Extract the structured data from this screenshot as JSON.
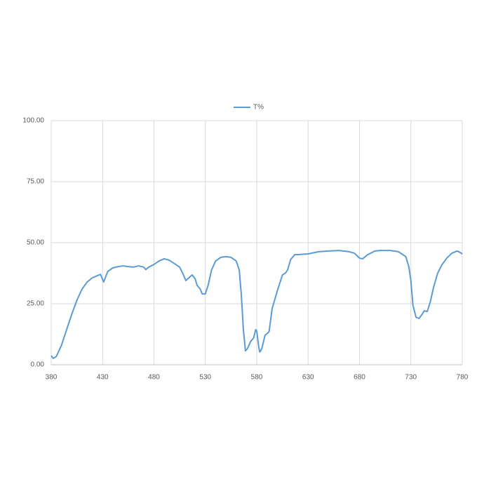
{
  "chart_data": {
    "type": "line",
    "x": [
      380,
      382,
      385,
      390,
      395,
      400,
      405,
      410,
      415,
      420,
      425,
      428,
      431,
      435,
      440,
      445,
      450,
      455,
      460,
      465,
      470,
      472,
      475,
      480,
      485,
      490,
      495,
      500,
      505,
      508,
      511,
      514,
      517,
      520,
      522,
      525,
      527,
      530,
      533,
      536,
      540,
      545,
      550,
      555,
      560,
      563,
      565,
      567,
      569,
      571,
      574,
      577,
      579,
      580,
      582,
      583,
      585,
      588,
      592,
      595,
      600,
      605,
      608,
      610,
      613,
      617,
      620,
      630,
      640,
      650,
      660,
      670,
      675,
      680,
      683,
      688,
      695,
      700,
      710,
      718,
      725,
      728,
      730,
      732,
      735,
      738,
      741,
      743,
      746,
      749,
      752,
      756,
      760,
      765,
      770,
      775,
      778,
      780
    ],
    "series": [
      {
        "name": "T%",
        "color": "#5b9bd5",
        "values": [
          3.7,
          2.6,
          3.4,
          8,
          14.4,
          20.7,
          26.4,
          31,
          33.9,
          35.6,
          36.5,
          37,
          33.9,
          38.2,
          39.7,
          40.2,
          40.5,
          40.2,
          40,
          40.5,
          40,
          39,
          40,
          41.1,
          42.5,
          43.4,
          42.8,
          41.4,
          40,
          37.4,
          34.5,
          35.6,
          36.8,
          35.3,
          32.5,
          31,
          29,
          29,
          33,
          38.8,
          42.5,
          44,
          44.3,
          44,
          42.5,
          38.8,
          28.7,
          14.4,
          5.7,
          6.6,
          9.5,
          11,
          14.4,
          13.8,
          7.2,
          5.2,
          6.6,
          12,
          13.5,
          23,
          30.2,
          36.8,
          37.6,
          38.8,
          43.1,
          45.1,
          45.1,
          45.4,
          46.3,
          46.6,
          46.8,
          46.3,
          45.7,
          43.7,
          43.4,
          45.1,
          46.6,
          46.8,
          46.8,
          46.3,
          44.3,
          40.2,
          34.5,
          24.4,
          19.5,
          19,
          20.7,
          22.1,
          21.8,
          25.9,
          31.6,
          37.4,
          40.8,
          43.7,
          45.7,
          46.6,
          46,
          45.4
        ]
      }
    ],
    "xlim": [
      380,
      780
    ],
    "xticks": [
      380,
      430,
      480,
      530,
      580,
      630,
      680,
      730,
      780
    ],
    "ylim": [
      0,
      100
    ],
    "yticks": [
      {
        "value": 0,
        "label": "0.00"
      },
      {
        "value": 25,
        "label": "25.00"
      },
      {
        "value": 50,
        "label": "50.00"
      },
      {
        "value": 75,
        "label": "75.00"
      },
      {
        "value": 100,
        "label": "100.00"
      }
    ],
    "grid": true,
    "legend": "top"
  }
}
